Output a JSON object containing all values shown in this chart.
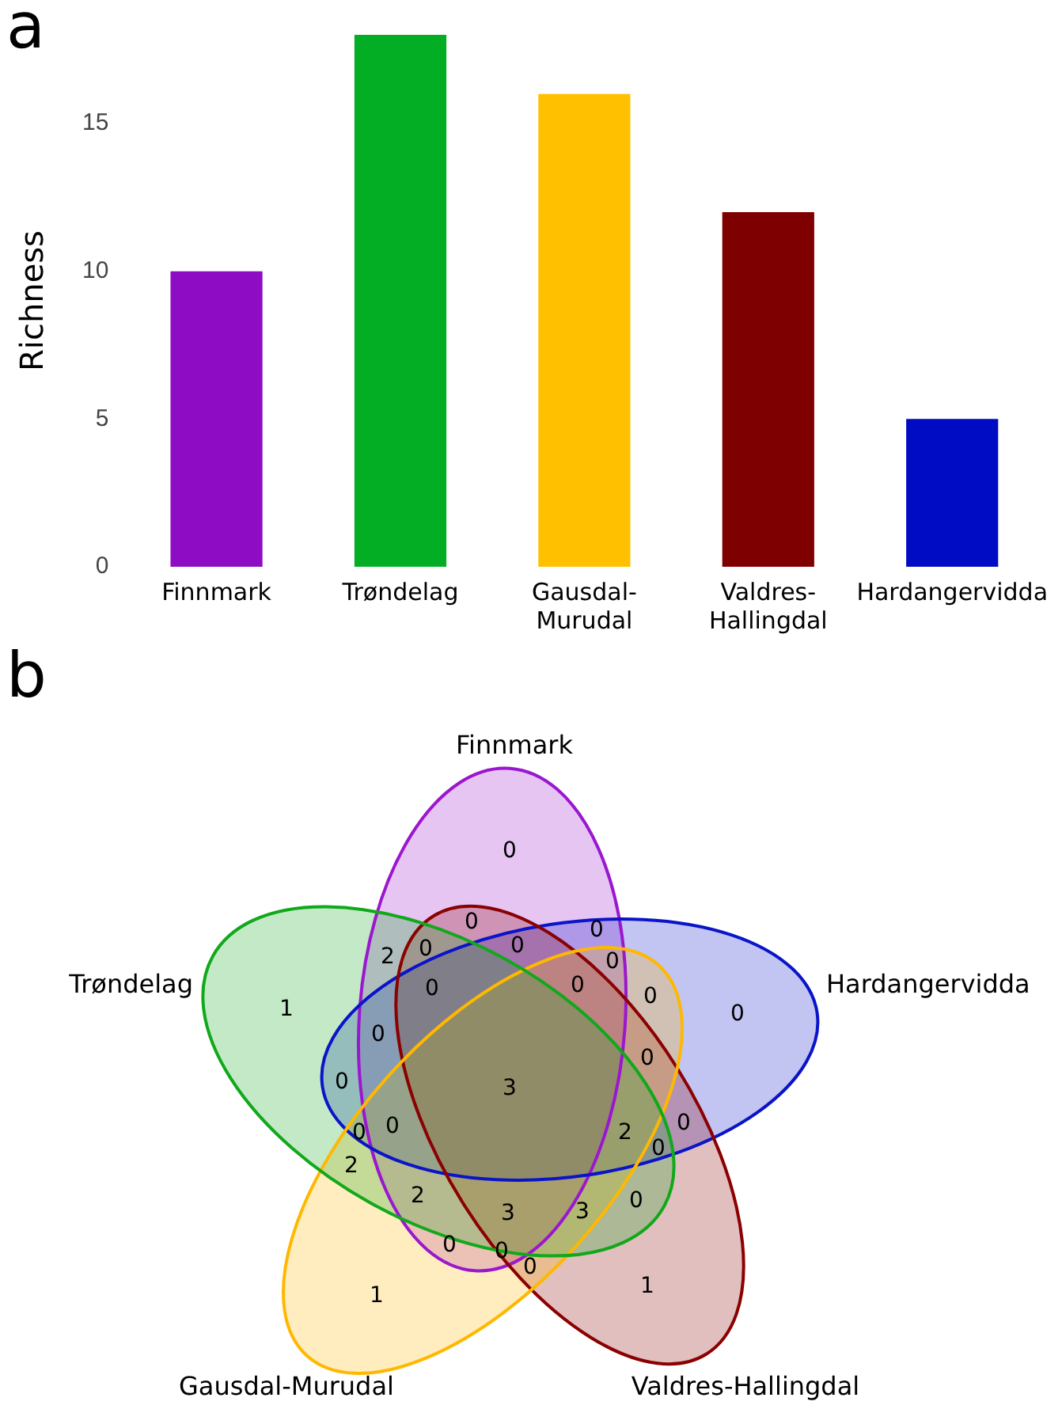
{
  "chart_data": [
    {
      "type": "bar",
      "title": "a",
      "ylabel": "Richness",
      "categories": [
        "Finnmark",
        "Trøndelag",
        "Gausdal-Murudal",
        "Valdres-Hallingdal",
        "Hardangervidda"
      ],
      "values": [
        10,
        18,
        16,
        12,
        5
      ],
      "colors": [
        "#8e0cc4",
        "#03ae24",
        "#ffc000",
        "#7f0000",
        "#000cc4"
      ],
      "ylim": [
        0,
        18
      ],
      "yticks": [
        0,
        5,
        10,
        15
      ],
      "grid": false,
      "legend": false
    },
    {
      "type": "other",
      "title": "b",
      "categories": [
        "Finnmark",
        "Hardangervidda",
        "Valdres-Hallingdal",
        "Gausdal-Murudal",
        "Trøndelag"
      ],
      "colors": [
        "#9b17cf",
        "#0a14c8",
        "#8b0000",
        "#ffb800",
        "#11a81c"
      ],
      "annotations": [
        "0",
        "0",
        "0",
        "2",
        "0",
        "0",
        "0",
        "0",
        "0",
        "0",
        "1",
        "0",
        "0",
        "0",
        "0",
        "3",
        "0",
        "0",
        "2",
        "0",
        "0",
        "2",
        "2",
        "3",
        "3",
        "0",
        "0",
        "0",
        "0",
        "1",
        "1"
      ]
    }
  ]
}
